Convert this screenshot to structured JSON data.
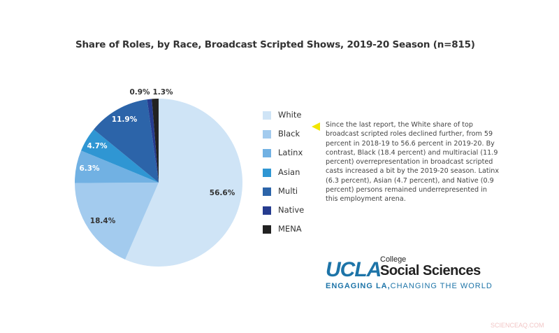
{
  "chart_data": {
    "type": "pie",
    "title": "Share of Roles, by Race, Broadcast Scripted Shows, 2019-20 Season (n=815)",
    "categories": [
      "White",
      "Black",
      "Latinx",
      "Asian",
      "Multi",
      "Native",
      "MENA"
    ],
    "values": [
      56.6,
      18.4,
      6.3,
      4.7,
      11.9,
      0.9,
      1.3
    ],
    "data_labels": [
      "56.6%",
      "18.4%",
      "6.3%",
      "4.7%",
      "11.9%",
      "0.9%",
      "1.3%"
    ],
    "colors": [
      "#cfe4f6",
      "#a3cbee",
      "#71b1e3",
      "#2f96d3",
      "#2c64a9",
      "#263c8f",
      "#222222"
    ],
    "legend_placement": "right",
    "start_angle": "top, clockwise"
  },
  "annotation": "Since the last report, the White share of top broadcast scripted roles declined further, from 59 percent in 2018-19 to 56.6 percent in 2019-20. By contrast, Black (18.4 percent) and multiracial (11.9 percent) overrepresentation in broadcast scripted casts increased a bit by the 2019-20 season. Latinx (6.3 percent), Asian (4.7 percent), and Native (0.9 percent) persons remained underrepresented in this employment arena.",
  "logo": {
    "ucla": "UCLA",
    "college": "College",
    "social_sciences": "Social Sciences",
    "tagline_bold": "ENGAGING LA,",
    "tagline": "CHANGING THE WORLD"
  },
  "watermark": "SCIENCEAQ.COM"
}
